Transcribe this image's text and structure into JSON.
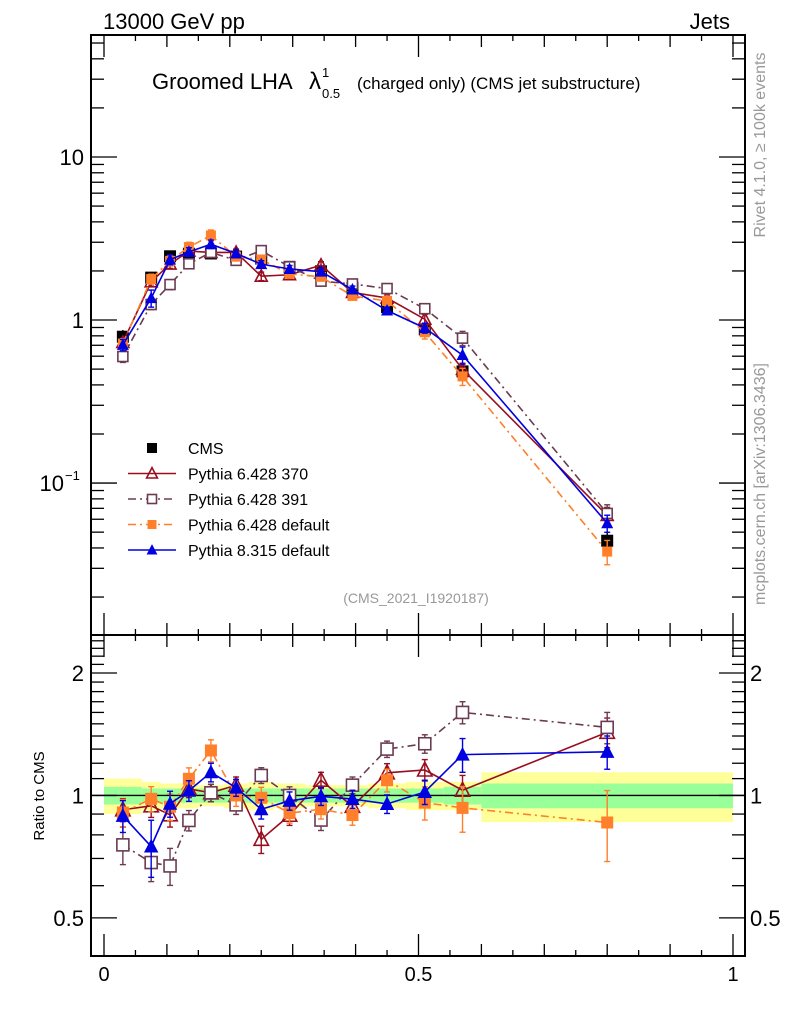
{
  "header": {
    "left": "13000 GeV pp",
    "right": "Jets"
  },
  "side_labels": {
    "rivet": "Rivet 4.1.0, ≥ 100k events",
    "mcplots": "mcplots.cern.ch [arXiv:1306.3436]"
  },
  "chart_data": {
    "type": "line",
    "title": "Groomed LHA λ^1_0.5 (charged only) (CMS jet substructure)",
    "title_parts": {
      "main": "Groomed LHA",
      "symbol": "λ",
      "sup": "1",
      "sub": "0.5",
      "rest": "(charged only) (CMS jet substructure)"
    },
    "analysis_id": "(CMS_2021_I1920187)",
    "xlabel": "",
    "ylabel_ratio": "Ratio to CMS",
    "xlim": [
      0,
      1
    ],
    "ylim_main": [
      0.0117,
      56
    ],
    "ylim_ratio": [
      0.403,
      2.48
    ],
    "y_scale": "log",
    "x_ticks": [
      "0",
      "0.5",
      "1"
    ],
    "x_tick_values": [
      0,
      0.5,
      1
    ],
    "y_ticks_main": [
      {
        "value": 10,
        "label": "10"
      },
      {
        "value": 1,
        "label": "1"
      },
      {
        "value": 0.1,
        "label": "10",
        "sup": "−1"
      }
    ],
    "y_ticks_ratio": [
      {
        "value": 2,
        "label": "2"
      },
      {
        "value": 1,
        "label": "1"
      },
      {
        "value": 0.5,
        "label": "0.5"
      }
    ],
    "bin_edges": [
      0,
      0.06,
      0.09,
      0.12,
      0.15,
      0.19,
      0.23,
      0.27,
      0.32,
      0.37,
      0.42,
      0.48,
      0.54,
      0.6,
      1.0
    ],
    "x": [
      0.03,
      0.075,
      0.105,
      0.135,
      0.17,
      0.21,
      0.25,
      0.295,
      0.345,
      0.395,
      0.45,
      0.51,
      0.57,
      0.8
    ],
    "reference": {
      "name": "CMS",
      "values": [
        0.79,
        1.82,
        2.46,
        2.55,
        2.56,
        2.45,
        2.38,
        2.12,
        1.99,
        1.57,
        1.2,
        0.876,
        0.484,
        0.0443
      ],
      "band_total": [
        0.1,
        0.08,
        0.07,
        0.07,
        0.06,
        0.07,
        0.08,
        0.07,
        0.06,
        0.06,
        0.07,
        0.08,
        0.08,
        0.14
      ],
      "band_stat": [
        0.05,
        0.04,
        0.04,
        0.04,
        0.04,
        0.04,
        0.04,
        0.04,
        0.04,
        0.04,
        0.04,
        0.04,
        0.05,
        0.07
      ]
    },
    "series": [
      {
        "name": "Pythia 6.428 370",
        "marker": "open-triangle",
        "line": "solid",
        "color": "#990e1f",
        "ratio": [
          0.922,
          0.943,
          0.896,
          1.038,
          1.015,
          1.06,
          0.78,
          0.894,
          1.09,
          0.94,
          1.137,
          1.155,
          1.03,
          1.43
        ],
        "ratio_err": [
          0.06,
          0.06,
          0.06,
          0.05,
          0.05,
          0.05,
          0.06,
          0.05,
          0.05,
          0.05,
          0.06,
          0.07,
          0.09,
          0.12
        ]
      },
      {
        "name": "Pythia 6.428 391",
        "marker": "open-square",
        "line": "dash-dot",
        "color": "#6b3b51",
        "ratio": [
          0.756,
          0.684,
          0.671,
          0.868,
          1.015,
          0.948,
          1.12,
          1.0,
          0.87,
          1.06,
          1.3,
          1.34,
          1.6,
          1.47
        ],
        "ratio_err": [
          0.08,
          0.07,
          0.07,
          0.05,
          0.05,
          0.05,
          0.05,
          0.05,
          0.05,
          0.05,
          0.06,
          0.07,
          0.1,
          0.13
        ]
      },
      {
        "name": "Pythia 6.428 default",
        "marker": "filled-square",
        "line": "dash-dot",
        "color": "#ff7f2a",
        "ratio": [
          0.908,
          0.981,
          0.938,
          1.099,
          1.29,
          1.0,
          0.987,
          0.905,
          0.925,
          0.895,
          1.09,
          0.96,
          0.932,
          0.858
        ],
        "ratio_err": [
          0.07,
          0.07,
          0.07,
          0.07,
          0.08,
          0.06,
          0.06,
          0.05,
          0.05,
          0.05,
          0.07,
          0.09,
          0.12,
          0.17
        ]
      },
      {
        "name": "Pythia 8.315 default",
        "marker": "filled-triangle",
        "line": "solid",
        "color": "#0000e0",
        "ratio": [
          0.891,
          0.749,
          0.954,
          1.027,
          1.14,
          1.045,
          0.925,
          0.97,
          0.995,
          0.98,
          0.953,
          1.02,
          1.26,
          1.28
        ],
        "ratio_err": [
          0.08,
          0.12,
          0.07,
          0.06,
          0.06,
          0.05,
          0.05,
          0.05,
          0.05,
          0.05,
          0.05,
          0.07,
          0.12,
          0.12
        ]
      }
    ],
    "legend": {
      "placement": "lower-left",
      "entries": [
        "CMS",
        "Pythia 6.428 370",
        "Pythia 6.428 391",
        "Pythia 6.428 default",
        "Pythia 8.315 default"
      ]
    },
    "colors": {
      "band_total": "#ffff99",
      "band_stat": "#99ff99",
      "reference": "#000000",
      "side_text": "#999999"
    }
  }
}
